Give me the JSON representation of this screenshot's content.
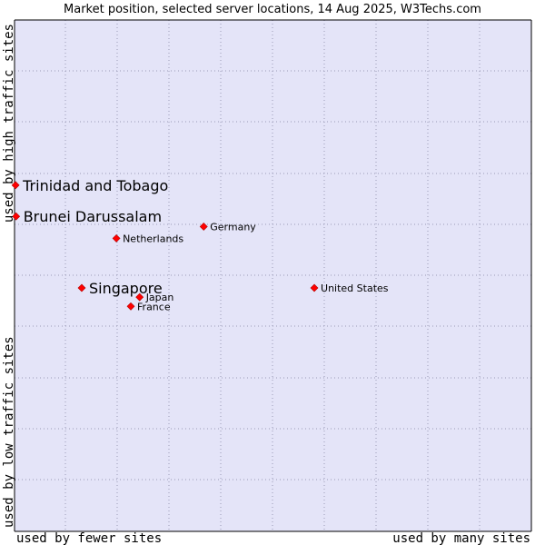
{
  "chart_data": {
    "type": "scatter",
    "title": "Market position, selected server locations, 14 Aug 2025, W3Techs.com",
    "x_axis": {
      "low_label": "used by fewer sites",
      "high_label": "used by many sites",
      "range": [
        0,
        100
      ]
    },
    "y_axis": {
      "low_label": "used by low traffic sites",
      "high_label": "used by high traffic sites",
      "range": [
        0,
        100
      ]
    },
    "grid": true,
    "colors": {
      "plot_background": "#e4e4f8",
      "grid": "#9a9ab6",
      "marker": "#ff0000",
      "marker_outline": "#b00000"
    },
    "points": [
      {
        "label": "Trinidad and Tobago",
        "x": 0.2,
        "y": 67.7,
        "emphasis": true
      },
      {
        "label": "Brunei Darussalam",
        "x": 0.3,
        "y": 61.6,
        "emphasis": true
      },
      {
        "label": "Germany",
        "x": 36.6,
        "y": 59.6,
        "emphasis": false
      },
      {
        "label": "Netherlands",
        "x": 19.7,
        "y": 57.3,
        "emphasis": false
      },
      {
        "label": "Singapore",
        "x": 13.0,
        "y": 47.6,
        "emphasis": true
      },
      {
        "label": "United States",
        "x": 58.0,
        "y": 47.6,
        "emphasis": false
      },
      {
        "label": "Japan",
        "x": 24.2,
        "y": 45.8,
        "emphasis": false
      },
      {
        "label": "France",
        "x": 22.5,
        "y": 44.0,
        "emphasis": false
      }
    ]
  }
}
